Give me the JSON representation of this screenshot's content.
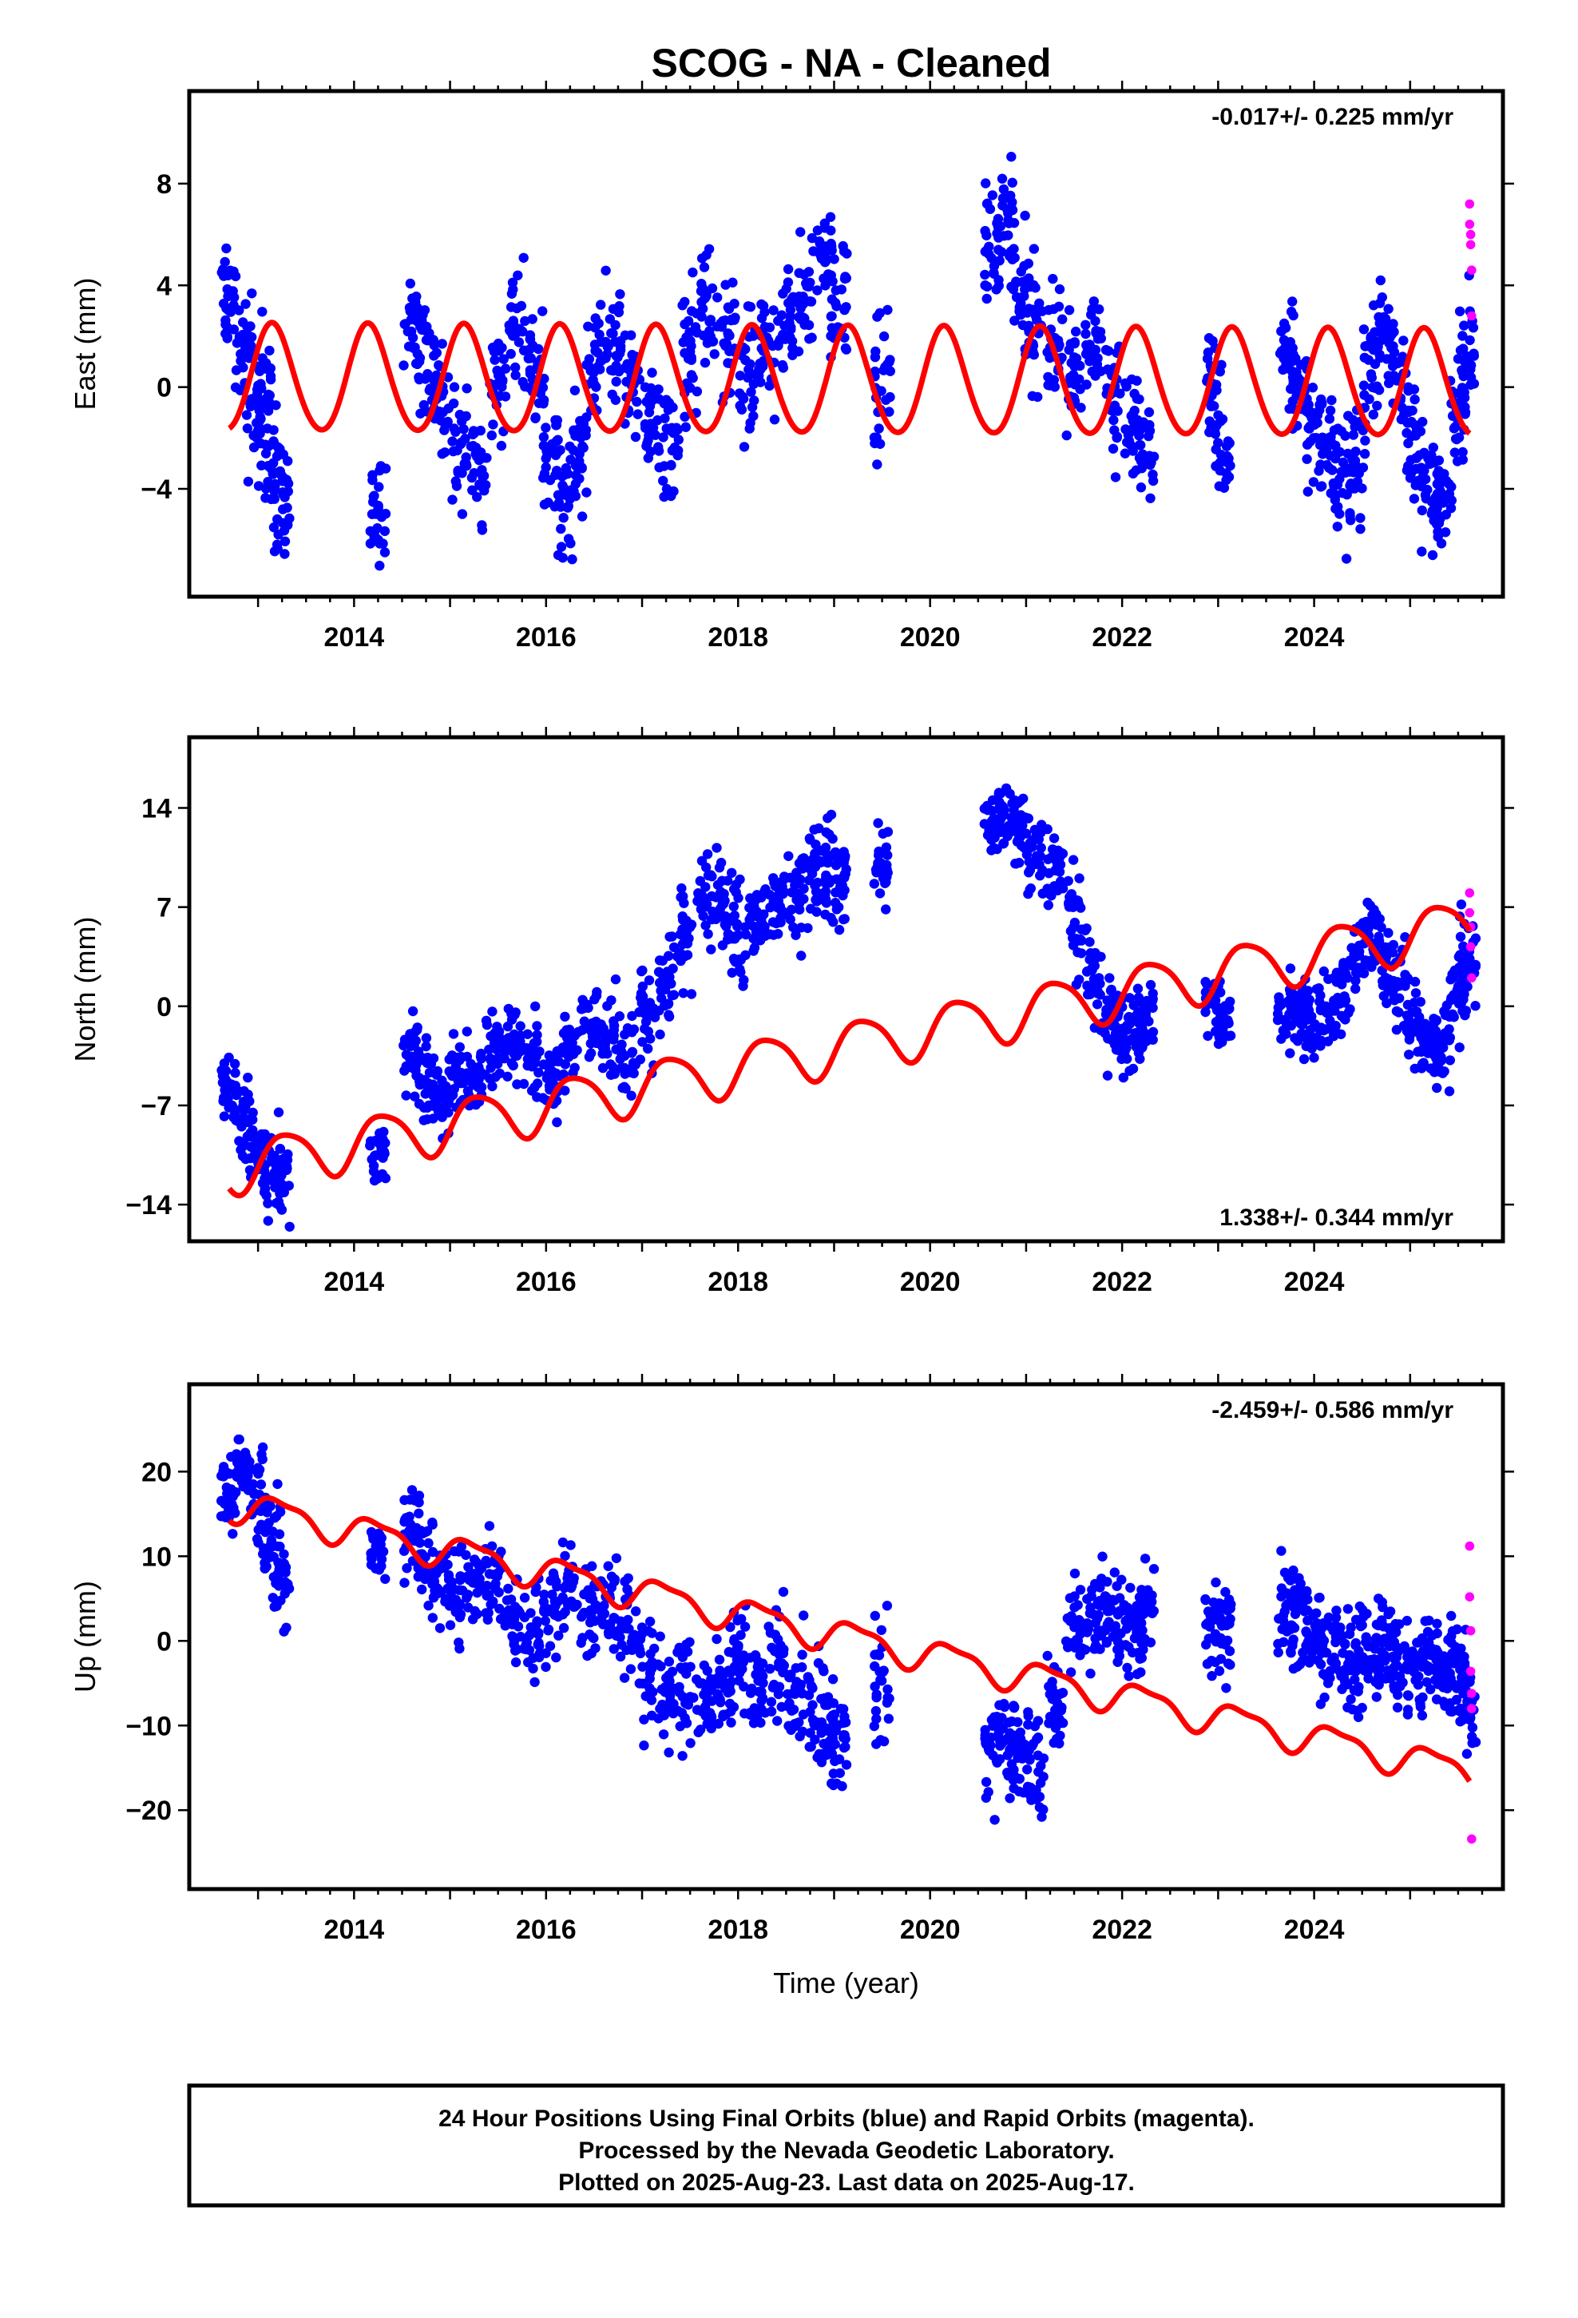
{
  "title": "SCOG  - NA - Cleaned",
  "colors": {
    "final": "#0000ff",
    "rapid": "#ff00ff",
    "model": "#ff0000",
    "frame": "#000000"
  },
  "footer": {
    "line1": "24 Hour Positions Using Final Orbits (blue) and Rapid Orbits (magenta).",
    "line2": "Processed by the Nevada Geodetic Laboratory.",
    "line3": "Plotted on 2025-Aug-23. Last data on 2025-Aug-17."
  },
  "chart_data": [
    {
      "type": "scatter",
      "ylabel": "East (mm)",
      "xlabel": "",
      "rate_label": "-0.017+/- 0.225 mm/yr",
      "rate_position": "top-right",
      "xlim": [
        2012.4,
        2025.85
      ],
      "ylim": [
        -7.8,
        11.2
      ],
      "x_ticks": [
        2014,
        2016,
        2018,
        2020,
        2022,
        2024
      ],
      "y_ticks": [
        -4,
        0,
        4,
        8
      ],
      "model": {
        "a": 0.2,
        "v": -0.017,
        "amp_annual": 2.1,
        "phase_annual": 0.62,
        "amp_semi": 0.15,
        "phase_semi": 0.1
      },
      "final_points": [
        [
          2012.7,
          3.5,
          1.4
        ],
        [
          2012.85,
          1.5,
          1.6
        ],
        [
          2012.95,
          -1.5,
          1.5
        ],
        [
          2013.05,
          0.0,
          2.0
        ],
        [
          2013.15,
          -3.2,
          1.6
        ],
        [
          2013.25,
          -4.5,
          1.5
        ],
        [
          2014.25,
          -5.0,
          1.2
        ],
        [
          2014.6,
          2.5,
          1.3
        ],
        [
          2014.75,
          1.0,
          1.8
        ],
        [
          2014.9,
          -0.5,
          1.5
        ],
        [
          2015.1,
          -2.0,
          1.7
        ],
        [
          2015.3,
          -3.0,
          1.5
        ],
        [
          2015.5,
          0.5,
          1.6
        ],
        [
          2015.7,
          2.0,
          1.8
        ],
        [
          2015.9,
          0.5,
          1.6
        ],
        [
          2016.05,
          -3.0,
          1.8
        ],
        [
          2016.2,
          -4.5,
          1.8
        ],
        [
          2016.35,
          -2.5,
          1.6
        ],
        [
          2016.5,
          1.0,
          1.5
        ],
        [
          2016.7,
          2.0,
          1.5
        ],
        [
          2016.9,
          0.0,
          1.5
        ],
        [
          2017.1,
          -1.5,
          1.5
        ],
        [
          2017.3,
          -2.5,
          1.5
        ],
        [
          2017.5,
          1.5,
          1.7
        ],
        [
          2017.7,
          3.0,
          1.6
        ],
        [
          2017.9,
          2.0,
          1.5
        ],
        [
          2018.1,
          0.5,
          1.8
        ],
        [
          2018.3,
          1.5,
          1.7
        ],
        [
          2018.5,
          2.5,
          1.6
        ],
        [
          2018.7,
          3.5,
          1.8
        ],
        [
          2018.9,
          5.0,
          1.5
        ],
        [
          2019.05,
          3.0,
          1.6
        ],
        [
          2019.5,
          0.0,
          1.8
        ],
        [
          2020.65,
          5.5,
          1.6
        ],
        [
          2020.8,
          6.5,
          1.8
        ],
        [
          2020.95,
          4.0,
          1.7
        ],
        [
          2021.1,
          3.0,
          1.8
        ],
        [
          2021.3,
          2.0,
          1.6
        ],
        [
          2021.5,
          0.5,
          1.6
        ],
        [
          2021.7,
          2.0,
          1.5
        ],
        [
          2021.9,
          -0.5,
          1.6
        ],
        [
          2022.1,
          -1.5,
          1.5
        ],
        [
          2022.25,
          -2.5,
          1.4
        ],
        [
          2022.95,
          0.0,
          1.3
        ],
        [
          2023.05,
          -2.5,
          1.2
        ],
        [
          2023.7,
          1.5,
          1.6
        ],
        [
          2023.85,
          0.0,
          1.5
        ],
        [
          2024.0,
          -1.5,
          1.5
        ],
        [
          2024.15,
          -2.5,
          1.6
        ],
        [
          2024.3,
          -3.5,
          1.6
        ],
        [
          2024.45,
          -2.5,
          1.6
        ],
        [
          2024.6,
          1.0,
          1.7
        ],
        [
          2024.75,
          2.0,
          1.5
        ],
        [
          2024.9,
          0.0,
          1.5
        ],
        [
          2025.05,
          -2.5,
          1.6
        ],
        [
          2025.2,
          -4.0,
          1.5
        ],
        [
          2025.35,
          -4.0,
          1.5
        ],
        [
          2025.5,
          -1.0,
          1.6
        ],
        [
          2025.6,
          1.5,
          1.6
        ]
      ],
      "rapid_points": [
        [
          2025.62,
          7.2
        ],
        [
          2025.62,
          6.4
        ],
        [
          2025.63,
          6.0
        ],
        [
          2025.63,
          5.6
        ],
        [
          2025.64,
          4.6
        ],
        [
          2025.64,
          2.8
        ]
      ]
    },
    {
      "type": "scatter",
      "ylabel": "North (mm)",
      "xlabel": "",
      "rate_label": "1.338+/- 0.344 mm/yr",
      "rate_position": "bottom-right",
      "xlim": [
        2012.4,
        2025.85
      ],
      "ylim": [
        -15.8,
        18.2
      ],
      "x_ticks": [
        2014,
        2016,
        2018,
        2020,
        2022,
        2024
      ],
      "y_ticks": [
        -14,
        -7,
        0,
        7,
        14
      ],
      "model": {
        "a": -3.0,
        "v": 1.338,
        "amp_annual": 1.8,
        "phase_annual": -0.3,
        "amp_semi": 0.3,
        "phase_semi": 0.5
      },
      "final_points": [
        [
          2012.7,
          -5.5,
          1.8
        ],
        [
          2012.85,
          -8.0,
          2.0
        ],
        [
          2013.0,
          -10.0,
          2.0
        ],
        [
          2013.15,
          -11.5,
          2.2
        ],
        [
          2013.25,
          -12.0,
          2.0
        ],
        [
          2014.25,
          -10.5,
          1.5
        ],
        [
          2014.6,
          -3.5,
          2.0
        ],
        [
          2014.75,
          -5.5,
          2.0
        ],
        [
          2014.9,
          -6.5,
          1.8
        ],
        [
          2015.05,
          -5.0,
          2.0
        ],
        [
          2015.25,
          -5.0,
          1.8
        ],
        [
          2015.45,
          -3.0,
          2.0
        ],
        [
          2015.65,
          -2.5,
          2.0
        ],
        [
          2015.85,
          -3.5,
          2.0
        ],
        [
          2016.05,
          -4.5,
          2.0
        ],
        [
          2016.25,
          -3.0,
          2.0
        ],
        [
          2016.45,
          -1.0,
          2.0
        ],
        [
          2016.65,
          -2.0,
          2.0
        ],
        [
          2016.85,
          -3.5,
          2.0
        ],
        [
          2017.05,
          -1.0,
          2.5
        ],
        [
          2017.25,
          2.0,
          2.5
        ],
        [
          2017.45,
          5.0,
          2.5
        ],
        [
          2017.65,
          8.0,
          2.2
        ],
        [
          2017.85,
          7.5,
          2.5
        ],
        [
          2018.0,
          5.0,
          2.5
        ],
        [
          2018.2,
          6.0,
          2.5
        ],
        [
          2018.4,
          7.0,
          2.5
        ],
        [
          2018.6,
          8.0,
          2.5
        ],
        [
          2018.8,
          9.0,
          2.5
        ],
        [
          2018.95,
          10.5,
          2.5
        ],
        [
          2019.05,
          8.0,
          3.0
        ],
        [
          2019.5,
          10.0,
          2.0
        ],
        [
          2020.65,
          13.0,
          1.5
        ],
        [
          2020.8,
          13.5,
          1.5
        ],
        [
          2020.95,
          12.0,
          1.8
        ],
        [
          2021.1,
          10.5,
          2.0
        ],
        [
          2021.3,
          9.5,
          2.0
        ],
        [
          2021.5,
          6.0,
          2.5
        ],
        [
          2021.7,
          2.0,
          2.0
        ],
        [
          2021.85,
          -0.5,
          2.0
        ],
        [
          2022.0,
          -2.0,
          2.0
        ],
        [
          2022.15,
          -2.5,
          2.0
        ],
        [
          2022.25,
          -1.5,
          2.0
        ],
        [
          2022.95,
          0.5,
          1.5
        ],
        [
          2023.05,
          -1.0,
          1.5
        ],
        [
          2023.7,
          -0.5,
          1.8
        ],
        [
          2023.85,
          -1.0,
          1.8
        ],
        [
          2024.0,
          -1.0,
          2.0
        ],
        [
          2024.15,
          -0.5,
          2.0
        ],
        [
          2024.3,
          1.0,
          2.0
        ],
        [
          2024.45,
          4.0,
          2.0
        ],
        [
          2024.6,
          5.0,
          2.0
        ],
        [
          2024.75,
          3.0,
          2.0
        ],
        [
          2024.9,
          1.0,
          2.0
        ],
        [
          2025.05,
          -1.5,
          2.0
        ],
        [
          2025.2,
          -2.5,
          2.0
        ],
        [
          2025.35,
          -2.5,
          2.0
        ],
        [
          2025.5,
          1.0,
          2.0
        ],
        [
          2025.6,
          3.0,
          2.0
        ]
      ],
      "rapid_points": [
        [
          2025.62,
          8.0
        ],
        [
          2025.62,
          6.6
        ],
        [
          2025.63,
          5.6
        ],
        [
          2025.63,
          4.2
        ],
        [
          2025.64,
          2.0
        ]
      ]
    },
    {
      "type": "scatter",
      "ylabel": "Up (mm)",
      "xlabel": "Time (year)",
      "rate_label": "-2.459+/- 0.586 mm/yr",
      "rate_position": "top-right",
      "xlim": [
        2012.4,
        2025.85
      ],
      "ylim": [
        -28,
        29
      ],
      "x_ticks": [
        2014,
        2016,
        2018,
        2020,
        2022,
        2024
      ],
      "y_ticks": [
        -20,
        -10,
        0,
        10,
        20
      ],
      "model": {
        "a": 0.8,
        "v": -2.459,
        "amp_annual": 1.8,
        "phase_annual": 0.1,
        "amp_semi": 0.6,
        "phase_semi": 1.2
      },
      "final_points": [
        [
          2012.7,
          17.0,
          3.5
        ],
        [
          2012.85,
          20.0,
          3.5
        ],
        [
          2013.0,
          17.0,
          4.0
        ],
        [
          2013.15,
          12.0,
          4.0
        ],
        [
          2013.25,
          6.0,
          3.5
        ],
        [
          2014.25,
          11.0,
          2.5
        ],
        [
          2014.6,
          13.0,
          3.5
        ],
        [
          2014.75,
          10.0,
          4.0
        ],
        [
          2014.9,
          7.0,
          3.5
        ],
        [
          2015.05,
          5.0,
          4.0
        ],
        [
          2015.25,
          6.0,
          3.5
        ],
        [
          2015.45,
          7.0,
          4.0
        ],
        [
          2015.65,
          3.0,
          4.0
        ],
        [
          2015.85,
          1.0,
          4.0
        ],
        [
          2016.05,
          3.0,
          4.0
        ],
        [
          2016.25,
          5.0,
          4.0
        ],
        [
          2016.45,
          3.0,
          4.0
        ],
        [
          2016.65,
          5.0,
          4.0
        ],
        [
          2016.85,
          2.0,
          4.0
        ],
        [
          2017.05,
          -4.0,
          4.5
        ],
        [
          2017.25,
          -6.0,
          4.5
        ],
        [
          2017.45,
          -5.0,
          4.5
        ],
        [
          2017.65,
          -7.0,
          4.5
        ],
        [
          2017.85,
          -5.0,
          4.5
        ],
        [
          2018.0,
          -3.0,
          4.5
        ],
        [
          2018.2,
          -5.0,
          4.5
        ],
        [
          2018.4,
          -3.0,
          4.5
        ],
        [
          2018.6,
          -6.0,
          4.5
        ],
        [
          2018.8,
          -8.0,
          4.5
        ],
        [
          2018.95,
          -10.0,
          4.5
        ],
        [
          2019.05,
          -13.0,
          4.5
        ],
        [
          2019.5,
          -5.0,
          5.0
        ],
        [
          2020.65,
          -13.0,
          4.5
        ],
        [
          2020.8,
          -12.0,
          4.5
        ],
        [
          2020.95,
          -14.0,
          4.5
        ],
        [
          2021.1,
          -15.0,
          4.5
        ],
        [
          2021.3,
          -8.0,
          4.5
        ],
        [
          2021.5,
          1.0,
          4.0
        ],
        [
          2021.7,
          3.0,
          4.0
        ],
        [
          2021.85,
          3.0,
          4.0
        ],
        [
          2022.0,
          3.0,
          4.0
        ],
        [
          2022.15,
          2.0,
          4.0
        ],
        [
          2022.25,
          4.0,
          3.5
        ],
        [
          2022.95,
          2.0,
          4.0
        ],
        [
          2023.05,
          1.0,
          4.0
        ],
        [
          2023.7,
          4.0,
          4.0
        ],
        [
          2023.85,
          2.0,
          4.0
        ],
        [
          2024.0,
          0.0,
          4.0
        ],
        [
          2024.15,
          -1.0,
          4.0
        ],
        [
          2024.3,
          -1.5,
          4.0
        ],
        [
          2024.45,
          -2.0,
          4.0
        ],
        [
          2024.6,
          -3.0,
          4.0
        ],
        [
          2024.75,
          -1.0,
          4.0
        ],
        [
          2024.9,
          -2.5,
          4.0
        ],
        [
          2025.05,
          -3.5,
          4.0
        ],
        [
          2025.2,
          -2.0,
          4.0
        ],
        [
          2025.35,
          -3.0,
          4.0
        ],
        [
          2025.5,
          -4.0,
          4.0
        ],
        [
          2025.6,
          -8.0,
          4.0
        ]
      ],
      "rapid_points": [
        [
          2025.62,
          11.2
        ],
        [
          2025.62,
          5.2
        ],
        [
          2025.63,
          1.2
        ],
        [
          2025.63,
          -3.6
        ],
        [
          2025.64,
          -6.2
        ],
        [
          2025.64,
          -8.0
        ],
        [
          2025.64,
          -23.4
        ]
      ]
    }
  ]
}
